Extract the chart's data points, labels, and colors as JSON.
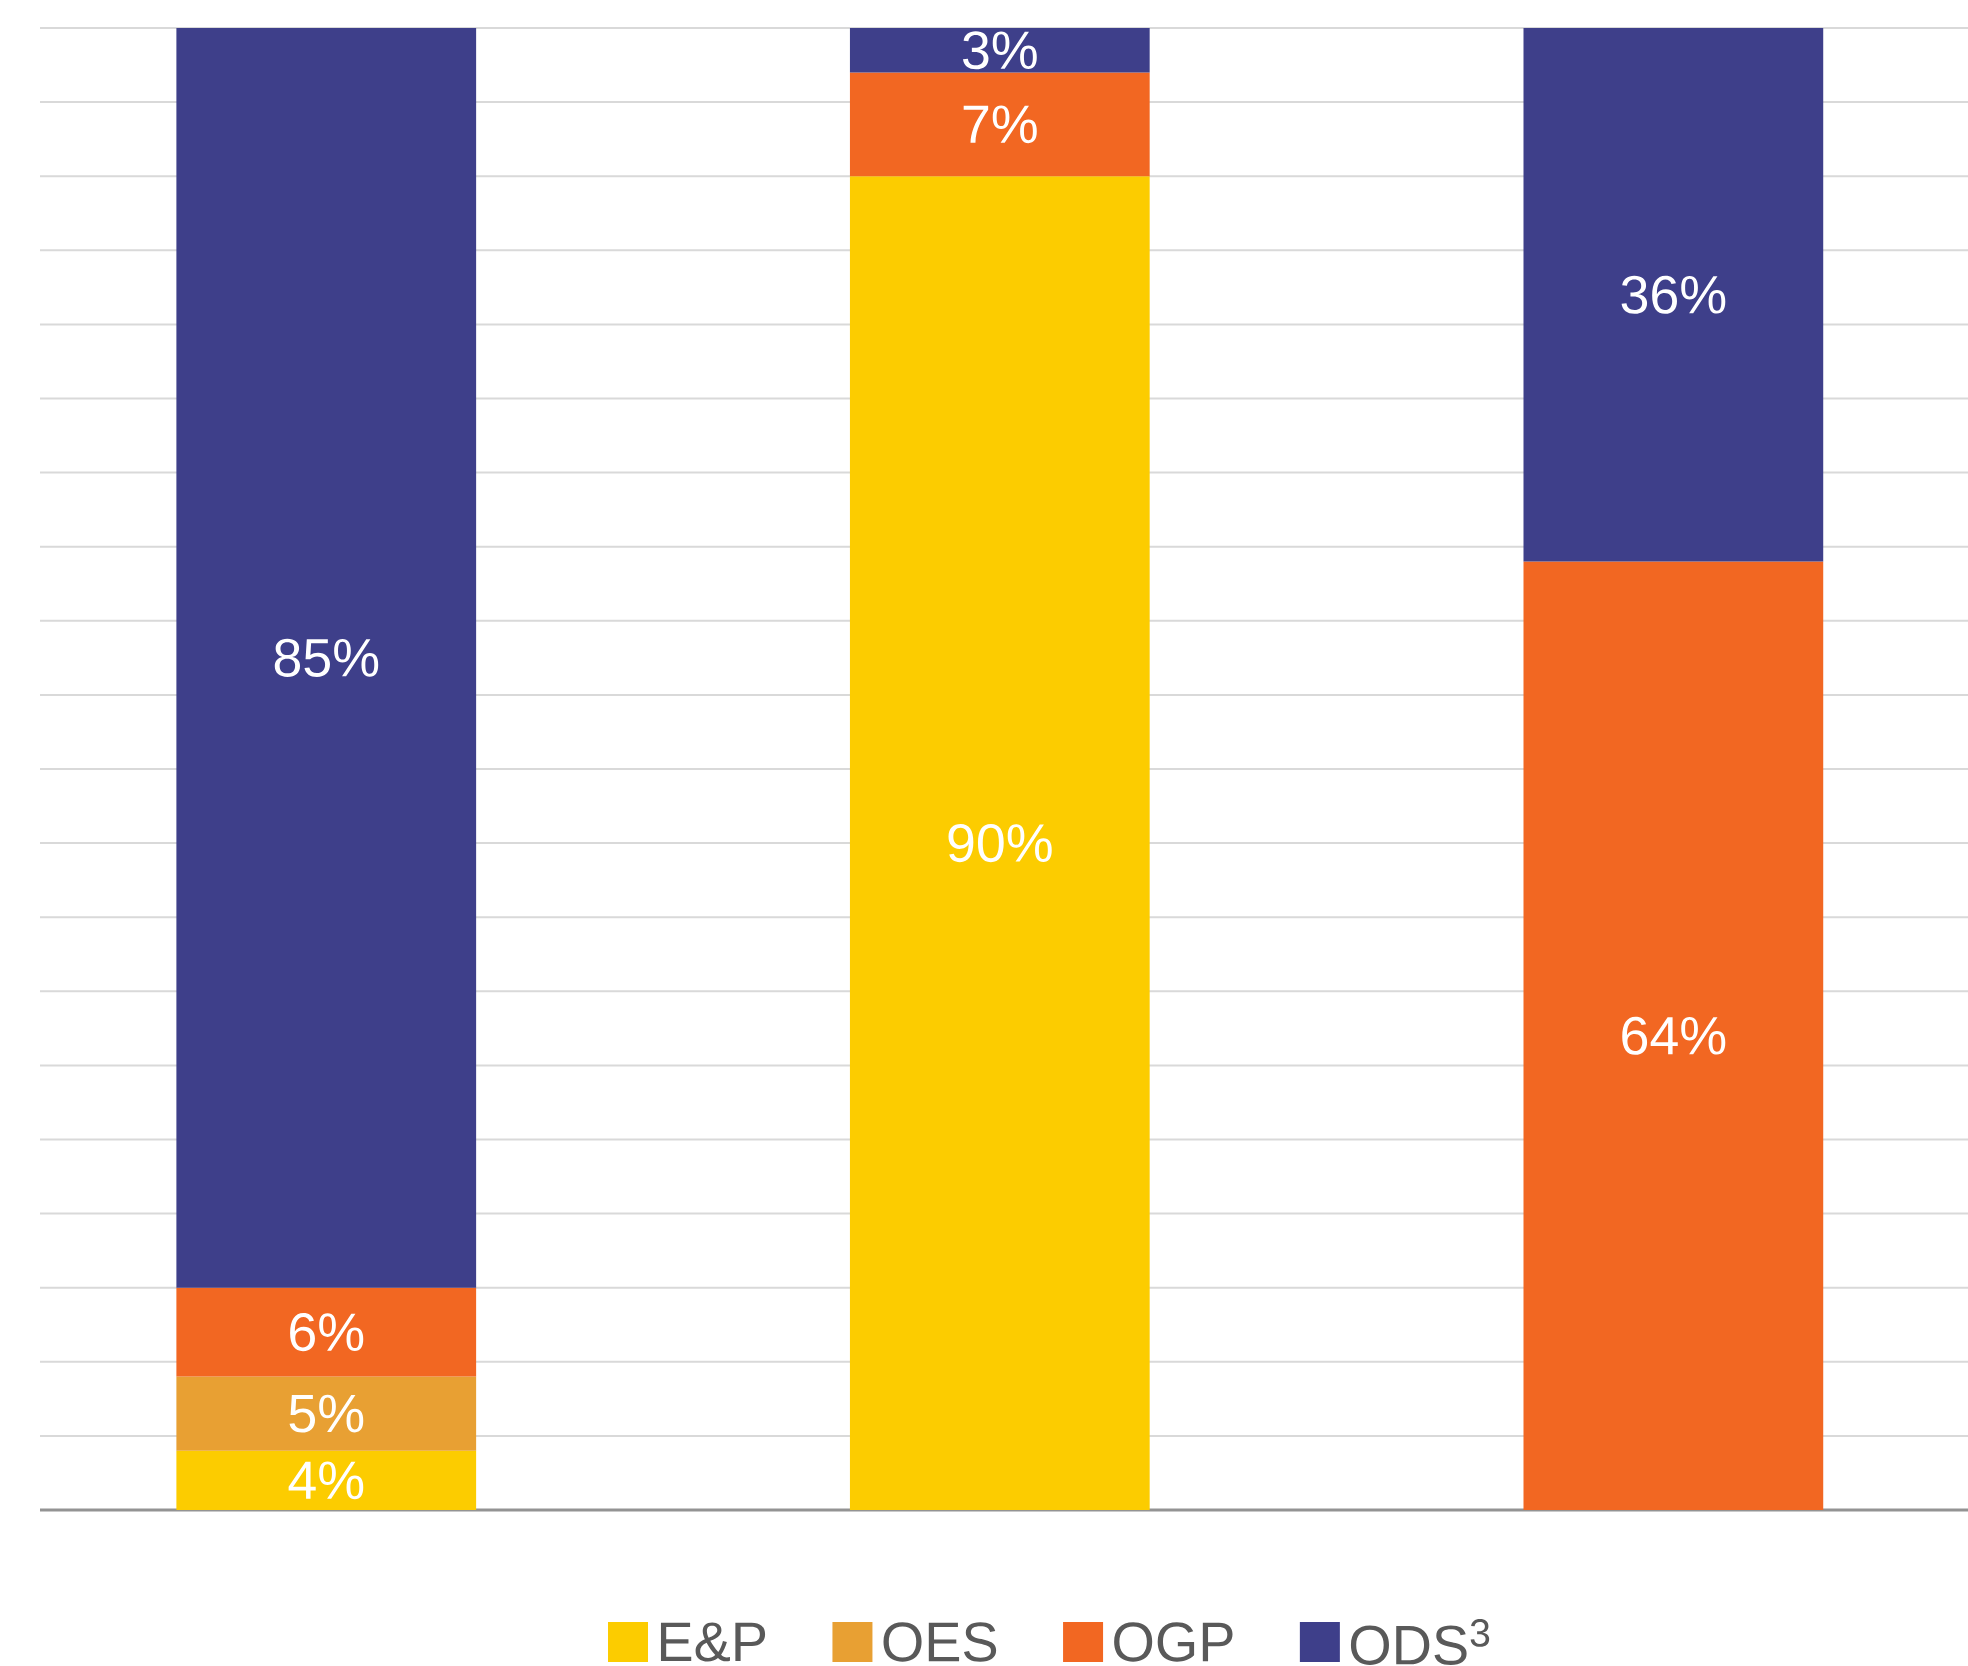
{
  "chart_data": {
    "type": "bar",
    "stacked": true,
    "categories": [
      null,
      null,
      null
    ],
    "series": [
      {
        "name": "E&P",
        "color": "#fccc00",
        "values": [
          4,
          90,
          null
        ],
        "value_labels": [
          "4%",
          "90%",
          null
        ]
      },
      {
        "name": "OES",
        "color": "#e8a033",
        "values": [
          5,
          null,
          null
        ],
        "value_labels": [
          "5%",
          null,
          null
        ]
      },
      {
        "name": "OGP",
        "color": "#f26722",
        "values": [
          6,
          7,
          64
        ],
        "value_labels": [
          "6%",
          "7%",
          "64%"
        ]
      },
      {
        "name": "ODS$^{3}$",
        "color": "#3e3f8a",
        "values": [
          85,
          3,
          36
        ],
        "value_labels": [
          "85%",
          "3%",
          "36%"
        ]
      }
    ],
    "ylim": [
      0,
      100
    ],
    "grid": "y",
    "tick_labels": false,
    "legend": "bottom"
  }
}
